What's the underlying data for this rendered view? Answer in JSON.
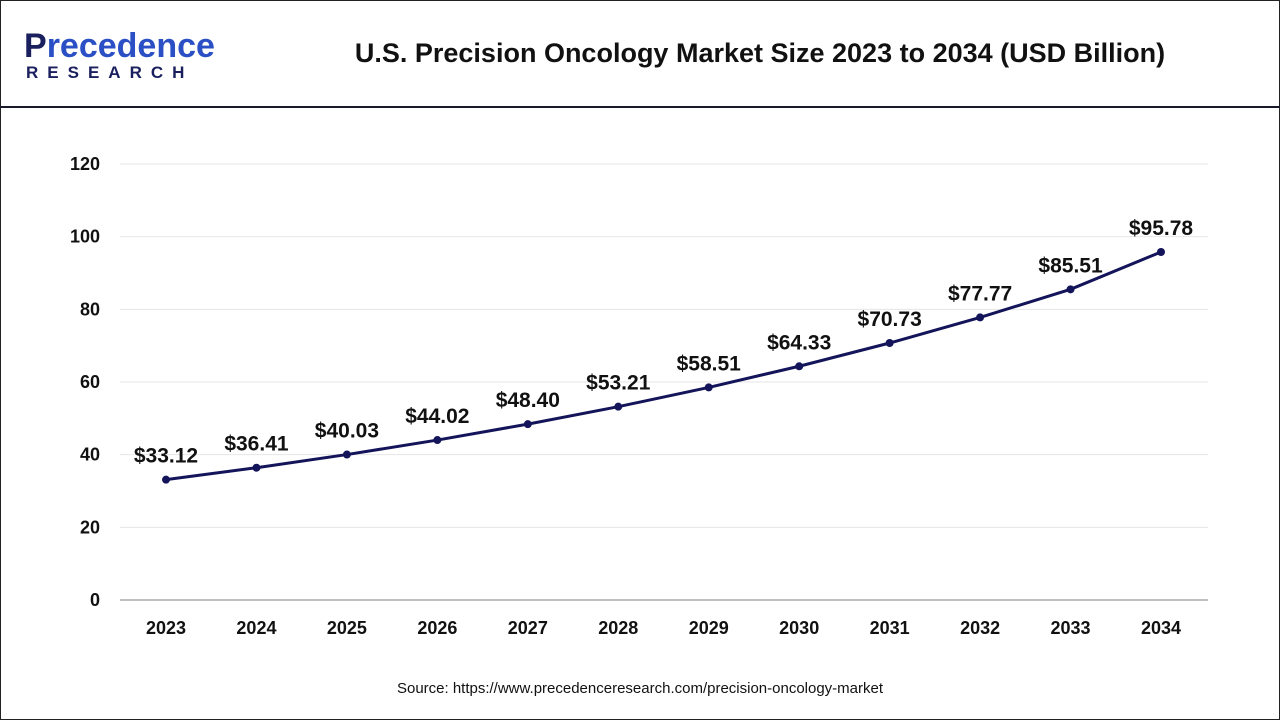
{
  "header": {
    "logo_text": "Precedence",
    "logo_sub": "RESEARCH",
    "title": "U.S. Precision Oncology Market Size 2023 to 2034 (USD Billion)"
  },
  "source": "Source: https://www.precedenceresearch.com/precision-oncology-market",
  "chart_data": {
    "type": "line",
    "title": "U.S. Precision Oncology Market Size 2023 to 2034 (USD Billion)",
    "categories": [
      "2023",
      "2024",
      "2025",
      "2026",
      "2027",
      "2028",
      "2029",
      "2030",
      "2031",
      "2032",
      "2033",
      "2034"
    ],
    "values": [
      33.12,
      36.41,
      40.03,
      44.02,
      48.4,
      53.21,
      58.51,
      64.33,
      70.73,
      77.77,
      85.51,
      95.78
    ],
    "data_labels": [
      "$33.12",
      "$36.41",
      "$40.03",
      "$44.02",
      "$48.40",
      "$53.21",
      "$58.51",
      "$64.33",
      "$70.73",
      "$77.77",
      "$85.51",
      "$95.78"
    ],
    "yticks": [
      0,
      20,
      40,
      60,
      80,
      100,
      120
    ],
    "ylim": [
      0,
      120
    ],
    "grid": true,
    "line_color": "#14145a",
    "xlabel": "",
    "ylabel": ""
  }
}
